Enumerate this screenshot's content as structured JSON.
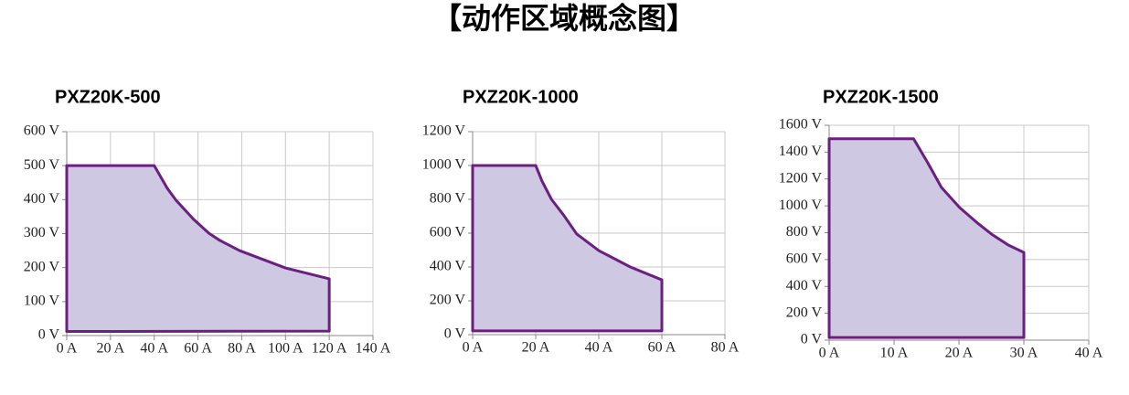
{
  "title": "【动作区域概念图】",
  "chart_data": [
    {
      "type": "area",
      "title": "PXZ20K-500",
      "color": "#cfc8e2",
      "line_color": "#6b1f7e",
      "grid": true,
      "xlim": [
        0,
        140
      ],
      "ylim": [
        0,
        600
      ],
      "xticks": [
        {
          "value": 0,
          "label": "0 A"
        },
        {
          "value": 20,
          "label": "20 A"
        },
        {
          "value": 40,
          "label": "40 A"
        },
        {
          "value": 60,
          "label": "60 A"
        },
        {
          "value": 80,
          "label": "80 A"
        },
        {
          "value": 100,
          "label": "100 A"
        },
        {
          "value": 120,
          "label": "120 A"
        },
        {
          "value": 140,
          "label": "140 A"
        }
      ],
      "yticks": [
        {
          "value": 0,
          "label": "0 V"
        },
        {
          "value": 100,
          "label": "100 V"
        },
        {
          "value": 200,
          "label": "200 V"
        },
        {
          "value": 300,
          "label": "300 V"
        },
        {
          "value": 400,
          "label": "400 V"
        },
        {
          "value": 500,
          "label": "500 V"
        },
        {
          "value": 600,
          "label": "600 V"
        }
      ],
      "series": [
        {
          "x": [
            0,
            0,
            40,
            46,
            50,
            58,
            65,
            70,
            79,
            100,
            120,
            120
          ],
          "values": [
            12,
            500,
            500,
            433,
            398,
            342,
            301,
            280,
            250,
            199,
            167,
            13
          ]
        }
      ]
    },
    {
      "type": "area",
      "title": "PXZ20K-1000",
      "color": "#cfc8e2",
      "line_color": "#6b1f7e",
      "grid": true,
      "xlim": [
        0,
        80
      ],
      "ylim": [
        0,
        1200
      ],
      "xticks": [
        {
          "value": 0,
          "label": "0 A"
        },
        {
          "value": 20,
          "label": "20 A"
        },
        {
          "value": 40,
          "label": "40 A"
        },
        {
          "value": 60,
          "label": "60 A"
        },
        {
          "value": 80,
          "label": "80 A"
        }
      ],
      "yticks": [
        {
          "value": 0,
          "label": "0 V"
        },
        {
          "value": 200,
          "label": "200 V"
        },
        {
          "value": 400,
          "label": "400 V"
        },
        {
          "value": 600,
          "label": "600 V"
        },
        {
          "value": 800,
          "label": "800 V"
        },
        {
          "value": 1000,
          "label": "1000 V"
        },
        {
          "value": 1200,
          "label": "1200 V"
        }
      ],
      "series": [
        {
          "x": [
            0,
            0,
            20,
            22,
            25,
            29,
            33,
            40,
            50,
            60,
            60
          ],
          "values": [
            22,
            1000,
            1000,
            908,
            800,
            703,
            595,
            497,
            400,
            324,
            22
          ]
        }
      ]
    },
    {
      "type": "area",
      "title": "PXZ20K-1500",
      "color": "#cfc8e2",
      "line_color": "#6b1f7e",
      "grid": true,
      "xlim": [
        0,
        40
      ],
      "ylim": [
        0,
        1600
      ],
      "xticks": [
        {
          "value": 0,
          "label": "0 A"
        },
        {
          "value": 10,
          "label": "10 A"
        },
        {
          "value": 20,
          "label": "20 A"
        },
        {
          "value": 30,
          "label": "30 A"
        },
        {
          "value": 40,
          "label": "40 A"
        }
      ],
      "yticks": [
        {
          "value": 0,
          "label": "0 V"
        },
        {
          "value": 200,
          "label": "200 V"
        },
        {
          "value": 400,
          "label": "400 V"
        },
        {
          "value": 600,
          "label": "600 V"
        },
        {
          "value": 800,
          "label": "800 V"
        },
        {
          "value": 1000,
          "label": "1000 V"
        },
        {
          "value": 1200,
          "label": "1200 V"
        },
        {
          "value": 1400,
          "label": "1400 V"
        },
        {
          "value": 1600,
          "label": "1600 V"
        }
      ],
      "series": [
        {
          "x": [
            0,
            0,
            13,
            15.2,
            17.3,
            20.1,
            22.7,
            25,
            27.6,
            30,
            30
          ],
          "values": [
            20,
            1500,
            1500,
            1320,
            1137,
            987,
            878,
            790,
            708,
            653,
            20
          ]
        }
      ]
    }
  ]
}
